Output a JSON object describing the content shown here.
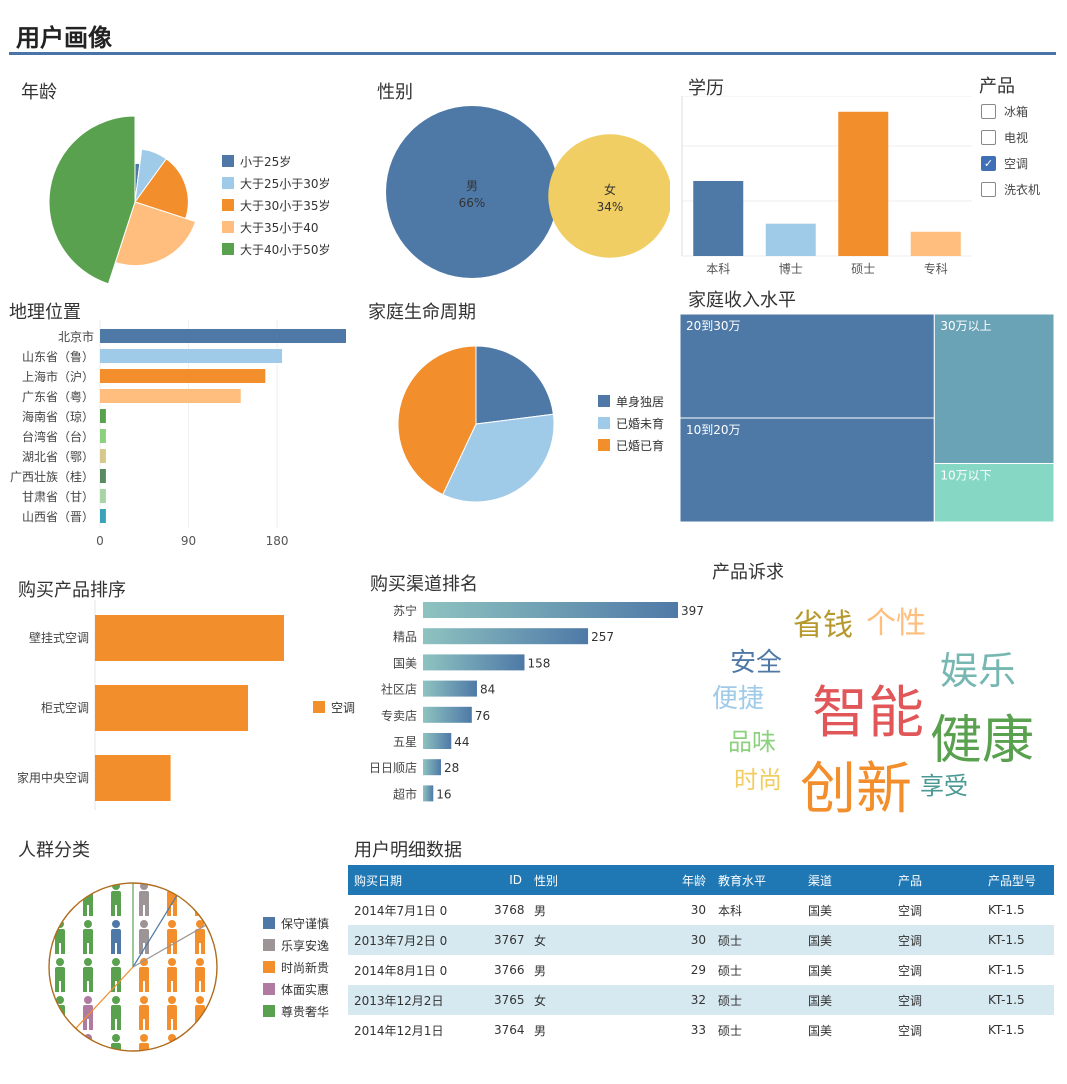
{
  "page_title": "用户画像",
  "titles": {
    "age": "年龄",
    "gender": "性别",
    "education": "学历",
    "product": "产品",
    "geo": "地理位置",
    "family": "家庭生命周期",
    "income": "家庭收入水平",
    "purchase": "购买产品排序",
    "channel": "购买渠道排名",
    "appeal": "产品诉求",
    "people": "人群分类",
    "detail": "用户明细数据"
  },
  "product_filter": [
    {
      "label": "冰箱",
      "checked": false
    },
    {
      "label": "电视",
      "checked": false
    },
    {
      "label": "空调",
      "checked": true
    },
    {
      "label": "洗衣机",
      "checked": false
    }
  ],
  "chart_data": [
    {
      "id": "age",
      "type": "pie",
      "title": "年龄",
      "categories": [
        "小于25岁",
        "大于25小于30岁",
        "大于30小于35岁",
        "大于35小于40",
        "大于40小于50岁"
      ],
      "values": [
        2,
        8,
        20,
        25,
        45
      ],
      "radii": [
        0.45,
        0.62,
        0.62,
        0.74,
        1.0
      ],
      "colors": [
        "#4e79a7",
        "#a0cbe8",
        "#f28e2b",
        "#ffbe7d",
        "#59a14f"
      ],
      "legend": "right"
    },
    {
      "id": "gender",
      "type": "bubble",
      "title": "性别",
      "categories": [
        "男",
        "女"
      ],
      "values": [
        66,
        34
      ],
      "labels": [
        "66%",
        "34%"
      ],
      "colors": [
        "#4e79a7",
        "#f1ce63"
      ]
    },
    {
      "id": "education",
      "type": "bar",
      "title": "学历",
      "categories": [
        "本科",
        "博士",
        "硕士",
        "专科"
      ],
      "values": [
        65,
        28,
        125,
        21
      ],
      "colors": [
        "#4e79a7",
        "#a0cbe8",
        "#f28e2b",
        "#ffbe7d"
      ],
      "ylim": [
        0,
        130
      ]
    },
    {
      "id": "geo",
      "type": "bar",
      "orientation": "horizontal",
      "title": "地理位置",
      "categories": [
        "北京市",
        "山东省（鲁）",
        "上海市（沪）",
        "广东省（粤）",
        "海南省（琼）",
        "台湾省（台）",
        "湖北省（鄂）",
        "广西壮族（桂）",
        "甘肃省（甘）",
        "山西省（晋）"
      ],
      "values": [
        250,
        185,
        168,
        143,
        6,
        6,
        6,
        6,
        6,
        6
      ],
      "colors": [
        "#4e79a7",
        "#a0cbe8",
        "#f28e2b",
        "#ffbe7d",
        "#59a14f",
        "#8cd17d",
        "#d7c98c",
        "#5b8a62",
        "#a8d5a3",
        "#3aa3b8"
      ],
      "xticks": [
        0,
        90,
        180
      ],
      "xlim": [
        0,
        250
      ]
    },
    {
      "id": "family",
      "type": "pie",
      "title": "家庭生命周期",
      "categories": [
        "单身独居",
        "已婚未育",
        "已婚已育"
      ],
      "values": [
        23,
        34,
        43
      ],
      "colors": [
        "#4e79a7",
        "#a0cbe8",
        "#f28e2b"
      ],
      "legend": "right"
    },
    {
      "id": "income",
      "type": "treemap",
      "title": "家庭收入水平",
      "categories": [
        "20到30万",
        "10到20万",
        "30万以上",
        "10万以下"
      ],
      "values": [
        34,
        34,
        23,
        9
      ],
      "colors": [
        "#4e79a7",
        "#4e79a7",
        "#6aa2b6",
        "#86d7c4"
      ]
    },
    {
      "id": "purchase",
      "type": "bar",
      "orientation": "horizontal",
      "title": "购买产品排序",
      "categories": [
        "壁挂式空调",
        "柜式空调",
        "家用中央空调"
      ],
      "values": [
        210,
        170,
        84
      ],
      "series": [
        {
          "name": "空调",
          "color": "#f28e2b"
        }
      ],
      "xlim": [
        0,
        250
      ]
    },
    {
      "id": "channel",
      "type": "bar",
      "orientation": "horizontal",
      "title": "购买渠道排名",
      "categories": [
        "苏宁",
        "精品",
        "国美",
        "社区店",
        "专卖店",
        "五星",
        "日日顺店",
        "超市"
      ],
      "values": [
        397,
        257,
        158,
        84,
        76,
        44,
        28,
        16
      ],
      "xlim": [
        0,
        397
      ]
    }
  ],
  "wordcloud": [
    {
      "text": "智能",
      "color": "#e15759"
    },
    {
      "text": "创新",
      "color": "#f28e2b"
    },
    {
      "text": "健康",
      "color": "#59a14f"
    },
    {
      "text": "娱乐",
      "color": "#76b7b2"
    },
    {
      "text": "省钱",
      "color": "#b6992d"
    },
    {
      "text": "个性",
      "color": "#ffbe7d"
    },
    {
      "text": "安全",
      "color": "#4e79a7"
    },
    {
      "text": "便捷",
      "color": "#a0cbe8"
    },
    {
      "text": "品味",
      "color": "#8cd17d"
    },
    {
      "text": "时尚",
      "color": "#f1ce63"
    },
    {
      "text": "享受",
      "color": "#499894"
    }
  ],
  "people": {
    "categories": [
      "保守谨慎",
      "乐享安逸",
      "时尚新贵",
      "体面实惠",
      "尊贵奢华"
    ],
    "colors": [
      "#4e79a7",
      "#9d9595",
      "#f28e2b",
      "#b07aa1",
      "#59a14f"
    ]
  },
  "detail": {
    "columns": [
      "购买日期",
      "ID",
      "性别",
      "年龄",
      "教育水平",
      "渠道",
      "产品",
      "产品型号"
    ],
    "rows": [
      [
        "2014年7月1日 0",
        "3768",
        "男",
        "30",
        "本科",
        "国美",
        "空调",
        "KT-1.5"
      ],
      [
        "2013年7月2日 0",
        "3767",
        "女",
        "30",
        "硕士",
        "国美",
        "空调",
        "KT-1.5"
      ],
      [
        "2014年8月1日 0",
        "3766",
        "男",
        "29",
        "硕士",
        "国美",
        "空调",
        "KT-1.5"
      ],
      [
        "2013年12月2日",
        "3765",
        "女",
        "32",
        "硕士",
        "国美",
        "空调",
        "KT-1.5"
      ],
      [
        "2014年12月1日",
        "3764",
        "男",
        "33",
        "硕士",
        "国美",
        "空调",
        "KT-1.5"
      ]
    ]
  }
}
